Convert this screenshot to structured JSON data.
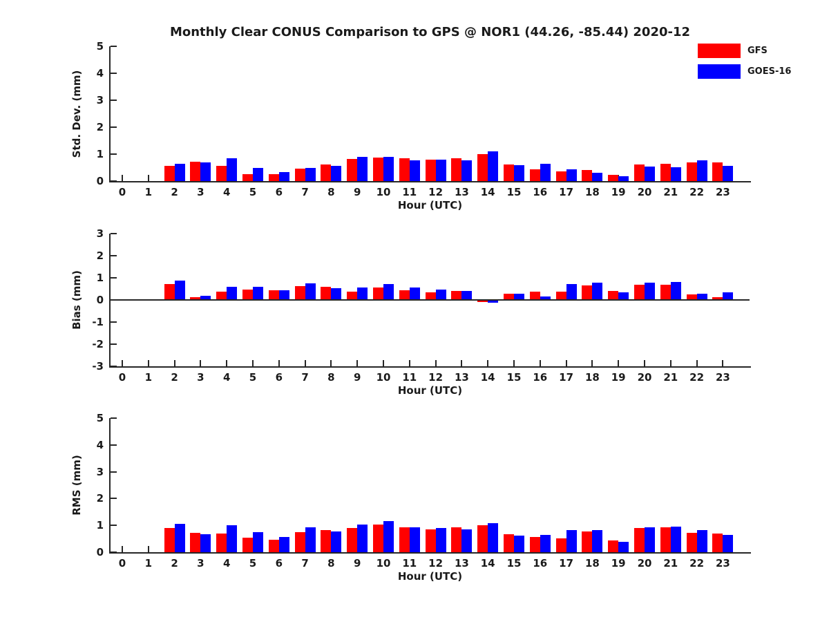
{
  "title": "Monthly Clear CONUS Comparison to GPS @ NOR1 (44.26, -85.44) 2020-12",
  "colors": {
    "gfs": "#ff0000",
    "goes16": "#0000ff",
    "axis": "#262626",
    "text": "#1a1a1a",
    "background": "#ffffff"
  },
  "legend": {
    "position": "upper right",
    "items": [
      {
        "label": "GFS",
        "color": "#ff0000"
      },
      {
        "label": "GOES-16",
        "color": "#0000ff"
      }
    ]
  },
  "chart_data": [
    {
      "type": "bar",
      "id": "stddev",
      "ylabel": "Std. Dev. (mm)",
      "xlabel": "Hour (UTC)",
      "ylim": [
        0,
        5
      ],
      "yticks": [
        0,
        1,
        2,
        3,
        4,
        5
      ],
      "grid": false,
      "zero_line": false,
      "categories": [
        0,
        1,
        2,
        3,
        4,
        5,
        6,
        7,
        8,
        9,
        10,
        11,
        12,
        13,
        14,
        15,
        16,
        17,
        18,
        19,
        20,
        21,
        22,
        23
      ],
      "series": [
        {
          "name": "GFS",
          "color": "#ff0000",
          "values": [
            null,
            null,
            0.56,
            0.73,
            0.57,
            0.25,
            0.25,
            0.45,
            0.62,
            0.82,
            0.87,
            0.84,
            0.79,
            0.84,
            1.0,
            0.61,
            0.44,
            0.35,
            0.41,
            0.22,
            0.61,
            0.63,
            0.7,
            0.68
          ]
        },
        {
          "name": "GOES-16",
          "color": "#0000ff",
          "values": [
            null,
            null,
            0.65,
            0.68,
            0.84,
            0.5,
            0.33,
            0.5,
            0.57,
            0.89,
            0.9,
            0.77,
            0.79,
            0.77,
            1.1,
            0.58,
            0.64,
            0.43,
            0.32,
            0.19,
            0.54,
            0.51,
            0.78,
            0.56
          ]
        }
      ]
    },
    {
      "type": "bar",
      "id": "bias",
      "ylabel": "Bias (mm)",
      "xlabel": "Hour (UTC)",
      "ylim": [
        -3,
        3
      ],
      "yticks": [
        -3,
        -2,
        -1,
        0,
        1,
        2,
        3
      ],
      "grid": false,
      "zero_line": true,
      "categories": [
        0,
        1,
        2,
        3,
        4,
        5,
        6,
        7,
        8,
        9,
        10,
        11,
        12,
        13,
        14,
        15,
        16,
        17,
        18,
        19,
        20,
        21,
        22,
        23
      ],
      "series": [
        {
          "name": "GFS",
          "color": "#ff0000",
          "values": [
            null,
            null,
            0.72,
            0.12,
            0.38,
            0.47,
            0.43,
            0.62,
            0.58,
            0.38,
            0.56,
            0.43,
            0.34,
            0.41,
            -0.09,
            0.28,
            0.36,
            0.37,
            0.67,
            0.41,
            0.68,
            0.68,
            0.25,
            0.13
          ]
        },
        {
          "name": "GOES-16",
          "color": "#0000ff",
          "values": [
            null,
            null,
            0.87,
            0.18,
            0.58,
            0.58,
            0.45,
            0.76,
            0.52,
            0.55,
            0.73,
            0.55,
            0.46,
            0.41,
            -0.12,
            0.28,
            0.16,
            0.72,
            0.77,
            0.33,
            0.77,
            0.8,
            0.29,
            0.34
          ]
        }
      ]
    },
    {
      "type": "bar",
      "id": "rms",
      "ylabel": "RMS (mm)",
      "xlabel": "Hour (UTC)",
      "ylim": [
        0,
        5
      ],
      "yticks": [
        0,
        1,
        2,
        3,
        4,
        5
      ],
      "grid": false,
      "zero_line": false,
      "categories": [
        0,
        1,
        2,
        3,
        4,
        5,
        6,
        7,
        8,
        9,
        10,
        11,
        12,
        13,
        14,
        15,
        16,
        17,
        18,
        19,
        20,
        21,
        22,
        23
      ],
      "series": [
        {
          "name": "GFS",
          "color": "#ff0000",
          "values": [
            null,
            null,
            0.91,
            0.72,
            0.69,
            0.54,
            0.47,
            0.76,
            0.82,
            0.9,
            1.03,
            0.92,
            0.85,
            0.92,
            1.01,
            0.66,
            0.57,
            0.52,
            0.78,
            0.44,
            0.89,
            0.93,
            0.73,
            0.7
          ]
        },
        {
          "name": "GOES-16",
          "color": "#0000ff",
          "values": [
            null,
            null,
            1.05,
            0.68,
            1.01,
            0.76,
            0.57,
            0.92,
            0.78,
            1.03,
            1.15,
            0.92,
            0.9,
            0.85,
            1.08,
            0.62,
            0.64,
            0.83,
            0.82,
            0.38,
            0.92,
            0.96,
            0.82,
            0.64
          ]
        }
      ]
    }
  ]
}
